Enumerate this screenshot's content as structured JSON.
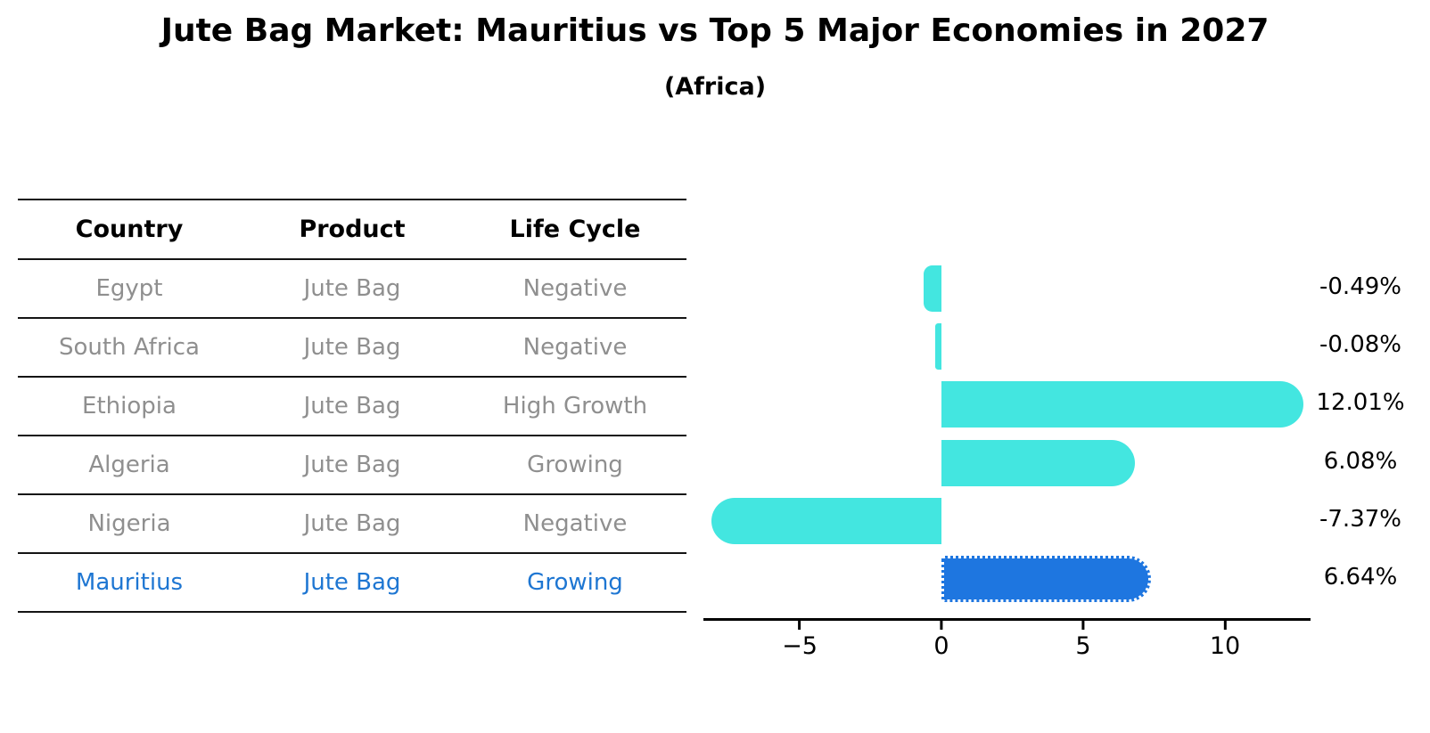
{
  "title": "Jute Bag Market: Mauritius vs Top 5 Major Economies in 2027",
  "subtitle": "(Africa)",
  "table": {
    "headers": [
      "Country",
      "Product",
      "Life Cycle"
    ],
    "rows": [
      {
        "country": "Egypt",
        "product": "Jute Bag",
        "life_cycle": "Negative"
      },
      {
        "country": "South Africa",
        "product": "Jute Bag",
        "life_cycle": "Negative"
      },
      {
        "country": "Ethiopia",
        "product": "Jute Bag",
        "life_cycle": "High Growth"
      },
      {
        "country": "Algeria",
        "product": "Jute Bag",
        "life_cycle": "Growing"
      },
      {
        "country": "Nigeria",
        "product": "Jute Bag",
        "life_cycle": "Negative"
      },
      {
        "country": "Mauritius",
        "product": "Jute Bag",
        "life_cycle": "Growing"
      }
    ],
    "highlighted_row": "Mauritius"
  },
  "chart_data": {
    "type": "bar",
    "orientation": "horizontal",
    "title": "Jute Bag Market: Mauritius vs Top 5 Major Economies in 2027",
    "subtitle": "(Africa)",
    "categories": [
      "Egypt",
      "South Africa",
      "Ethiopia",
      "Algeria",
      "Nigeria",
      "Mauritius"
    ],
    "values": [
      -0.49,
      -0.08,
      12.01,
      6.08,
      -7.37,
      6.64
    ],
    "value_labels": [
      "-0.49%",
      "-0.08%",
      "12.01%",
      "6.08%",
      "-7.37%",
      "6.64%"
    ],
    "x_ticks": [
      -5,
      0,
      5,
      10
    ],
    "x_tick_labels": [
      "−5",
      "0",
      "5",
      "10"
    ],
    "xlim": [
      -8.4,
      13.0
    ],
    "grid": false,
    "legend": false,
    "highlight_index": 5,
    "bar_color": "#43E6E0",
    "highlight_bar_color": "#1E76E0"
  },
  "colors": {
    "background": "#FFFFFF",
    "header_text": "#000000",
    "row_text": "#8F8F8F",
    "highlight_text": "#1E76D2",
    "table_line": "#141414",
    "axis": "#000000",
    "value_label_text": "#000000"
  }
}
